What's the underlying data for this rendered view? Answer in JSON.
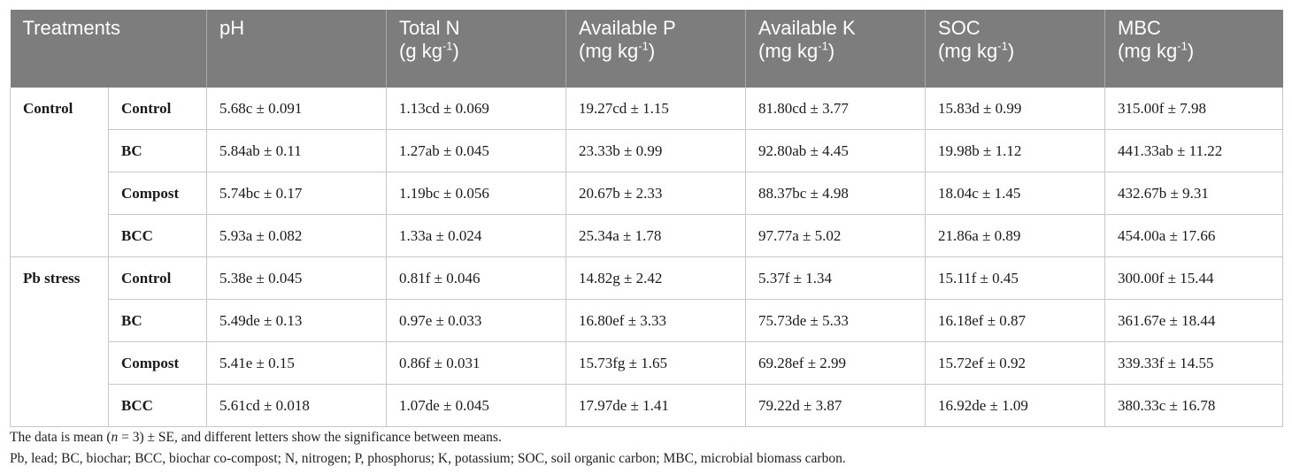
{
  "header": {
    "treatments": "Treatments",
    "ph": "pH",
    "total_n": {
      "line1": "Total N",
      "unit": "(g kg",
      "exp": "-1",
      "close": ")"
    },
    "avail_p": {
      "line1": "Available P",
      "unit": "(mg kg",
      "exp": "-1",
      "close": ")"
    },
    "avail_k": {
      "line1": "Available K",
      "unit": "(mg kg",
      "exp": "-1",
      "close": ")"
    },
    "soc": {
      "line1": "SOC",
      "unit": "(mg kg",
      "exp": "-1",
      "close": ")"
    },
    "mbc": {
      "line1": "MBC",
      "unit": "(mg kg",
      "exp": "-1",
      "close": ")"
    }
  },
  "groups": [
    {
      "label": "Control",
      "rows": [
        [
          "Control",
          "5.68c ± 0.091",
          "1.13cd ± 0.069",
          "19.27cd ± 1.15",
          "81.80cd ± 3.77",
          "15.83d ± 0.99",
          "315.00f ± 7.98"
        ],
        [
          "BC",
          "5.84ab ± 0.11",
          "1.27ab ± 0.045",
          "23.33b ± 0.99",
          "92.80ab ± 4.45",
          "19.98b ± 1.12",
          "441.33ab ± 11.22"
        ],
        [
          "Compost",
          "5.74bc ± 0.17",
          "1.19bc ± 0.056",
          "20.67b ± 2.33",
          "88.37bc ± 4.98",
          "18.04c ± 1.45",
          "432.67b ± 9.31"
        ],
        [
          "BCC",
          "5.93a ± 0.082",
          "1.33a ± 0.024",
          "25.34a ± 1.78",
          "97.77a ± 5.02",
          "21.86a ± 0.89",
          "454.00a ± 17.66"
        ]
      ]
    },
    {
      "label": "Pb stress",
      "rows": [
        [
          "Control",
          "5.38e ± 0.045",
          "0.81f ± 0.046",
          "14.82g ± 2.42",
          "5.37f ± 1.34",
          "15.11f ± 0.45",
          "300.00f ± 15.44"
        ],
        [
          "BC",
          "5.49de ± 0.13",
          "0.97e ± 0.033",
          "16.80ef ± 3.33",
          "75.73de ± 5.33",
          "16.18ef ± 0.87",
          "361.67e ± 18.44"
        ],
        [
          "Compost",
          "5.41e ± 0.15",
          "0.86f ± 0.031",
          "15.73fg ± 1.65",
          "69.28ef ± 2.99",
          "15.72ef ± 0.92",
          "339.33f ± 14.55"
        ],
        [
          "BCC",
          "5.61cd ± 0.018",
          "1.07de ± 0.045",
          "17.97de ± 1.41",
          "79.22d ± 3.87",
          "16.92de ± 1.09",
          "380.33c ± 16.78"
        ]
      ]
    }
  ],
  "notes": {
    "line1_a": "The data is mean (",
    "line1_n": "n",
    "line1_b": " = 3) ± SE, and different letters show the significance between means.",
    "line2": "Pb, lead; BC, biochar; BCC, biochar co-compost; N, nitrogen; P, phosphorus; K, potassium; SOC, soil organic carbon; MBC, microbial biomass carbon."
  }
}
